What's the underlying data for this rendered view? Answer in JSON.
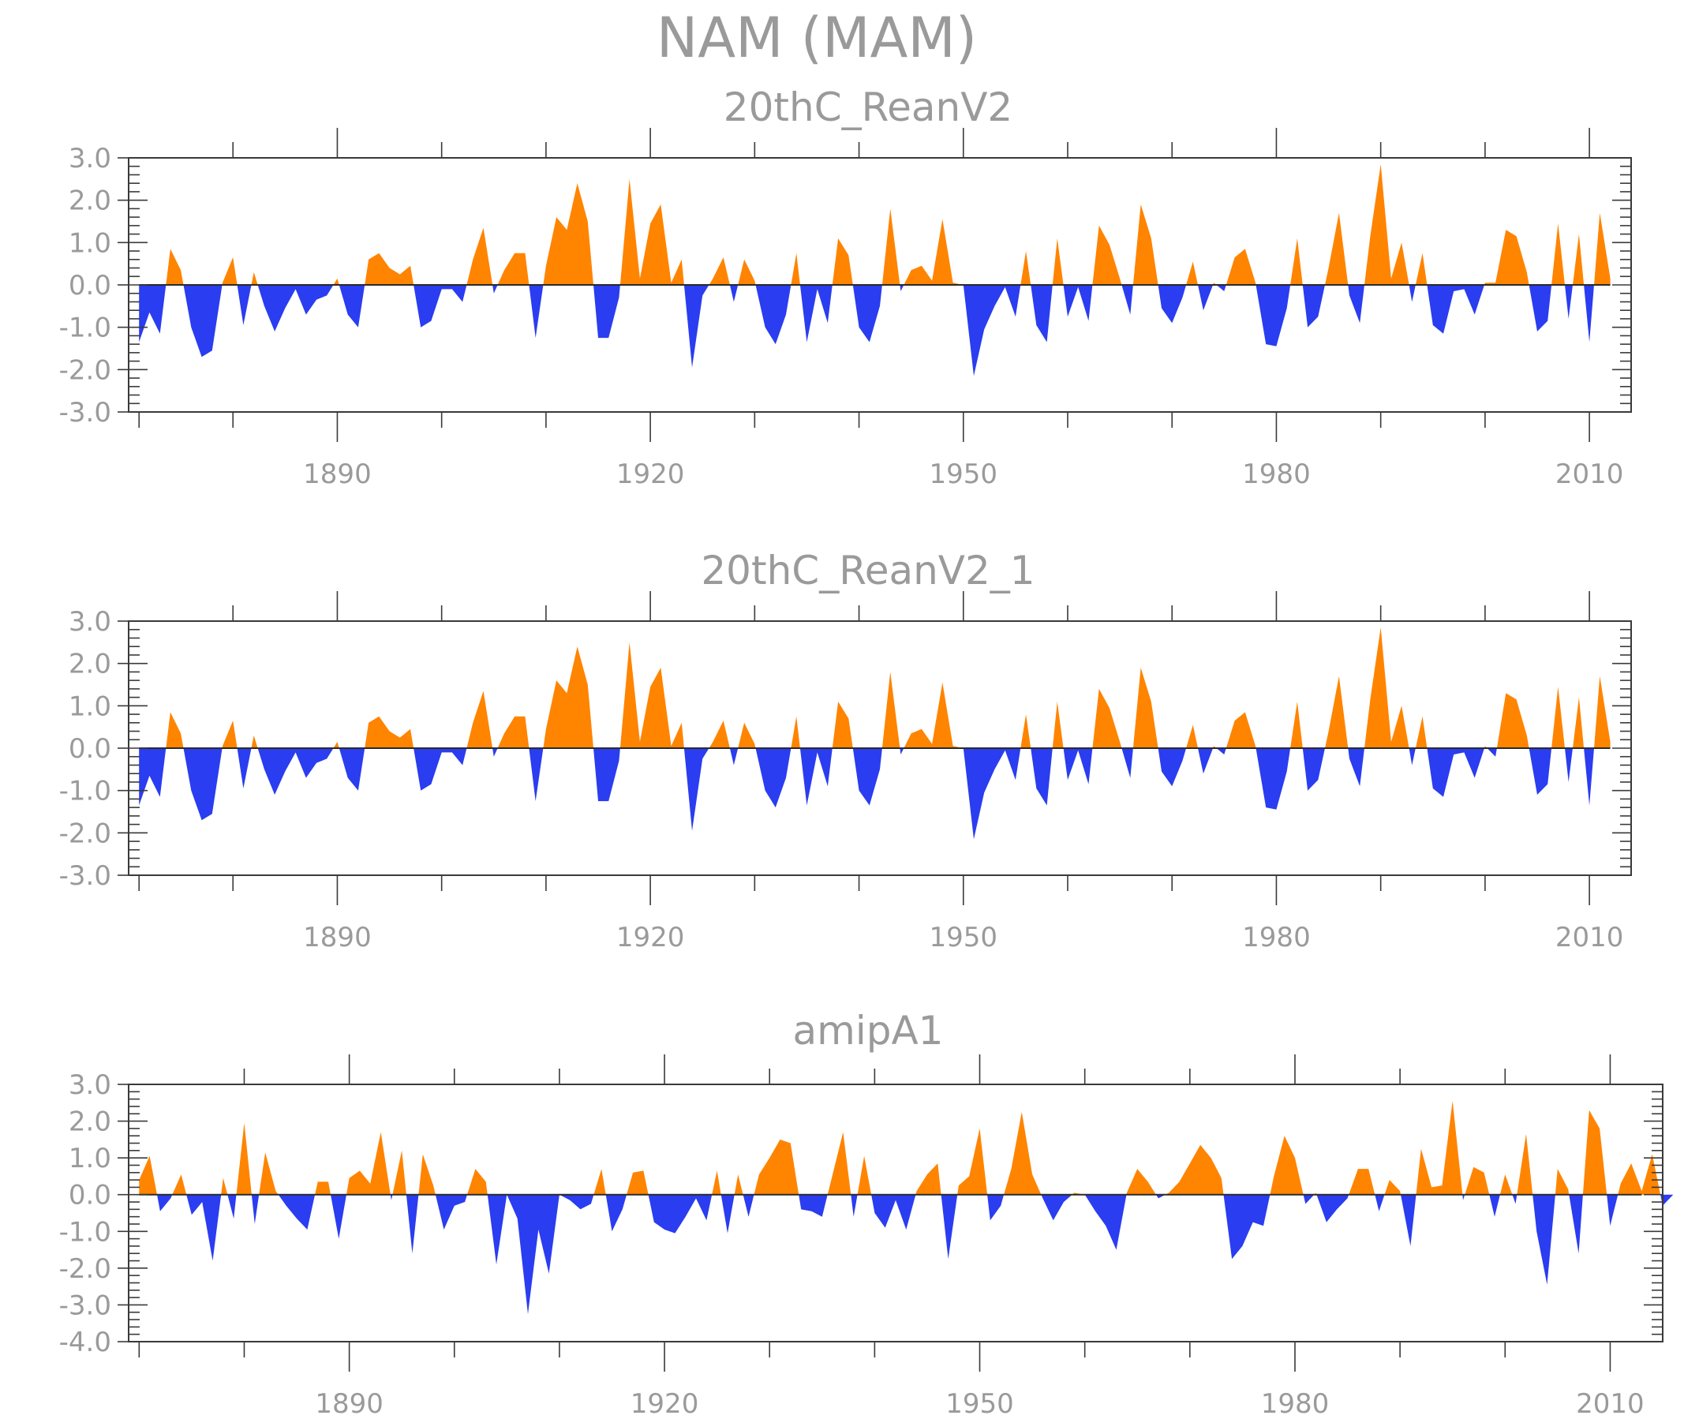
{
  "title": "NAM (MAM)",
  "colors": {
    "positive": "#ff8400",
    "negative": "#2a3df0",
    "axis": "#3a3a3a",
    "text": "#9a9a9a"
  },
  "chart_data": [
    {
      "type": "area",
      "title": "20thC_ReanV2",
      "x_start": 1871,
      "x_end": 2012,
      "xlim": [
        1870,
        2014
      ],
      "ylim": [
        -3.0,
        3.0
      ],
      "yticks": [
        -3.0,
        -2.0,
        -1.0,
        0.0,
        1.0,
        2.0,
        3.0
      ],
      "ytick_labels": [
        "-3.0",
        "-2.0",
        "-1.0",
        "0.0",
        "1.0",
        "2.0",
        "3.0"
      ],
      "xtick_labels": [
        "1890",
        "1920",
        "1950",
        "1980",
        "2010"
      ],
      "values": [
        -1.35,
        -0.65,
        -1.15,
        0.85,
        0.35,
        -1.0,
        -1.7,
        -1.55,
        0.05,
        0.65,
        -0.95,
        0.3,
        -0.5,
        -1.1,
        -0.55,
        -0.1,
        -0.7,
        -0.35,
        -0.25,
        0.15,
        -0.7,
        -1.0,
        0.6,
        0.75,
        0.4,
        0.25,
        0.45,
        -1.0,
        -0.85,
        -0.1,
        -0.1,
        -0.4,
        0.6,
        1.35,
        -0.2,
        0.35,
        0.75,
        0.75,
        -1.25,
        0.45,
        1.6,
        1.3,
        2.4,
        1.5,
        -1.25,
        -1.25,
        -0.3,
        2.5,
        0.15,
        1.45,
        1.9,
        0.05,
        0.6,
        -1.95,
        -0.25,
        0.15,
        0.65,
        -0.4,
        0.6,
        0.1,
        -1.0,
        -1.4,
        -0.7,
        0.75,
        -1.35,
        -0.1,
        -0.9,
        1.1,
        0.7,
        -1.0,
        -1.35,
        -0.5,
        1.8,
        -0.15,
        0.35,
        0.45,
        0.1,
        1.55,
        0.05,
        0.0,
        -2.15,
        -1.05,
        -0.5,
        -0.05,
        -0.75,
        0.8,
        -0.95,
        -1.35,
        1.1,
        -0.75,
        -0.05,
        -0.85,
        1.4,
        0.95,
        0.15,
        -0.7,
        1.9,
        1.1,
        -0.55,
        -0.9,
        -0.3,
        0.55,
        -0.6,
        0.05,
        -0.15,
        0.65,
        0.85,
        0.05,
        -1.4,
        -1.45,
        -0.55,
        1.1,
        -1.0,
        -0.75,
        0.4,
        1.7,
        -0.25,
        -0.9,
        1.15,
        2.85,
        0.15,
        1.0,
        -0.4,
        0.75,
        -0.95,
        -1.15,
        -0.15,
        -0.1,
        -0.7,
        0.05,
        0.05,
        1.3,
        1.15,
        0.3,
        -1.1,
        -0.85,
        1.45,
        -0.8,
        1.2,
        -1.35,
        1.7,
        0.15
      ]
    },
    {
      "type": "area",
      "title": "20thC_ReanV2_1",
      "x_start": 1871,
      "x_end": 2012,
      "xlim": [
        1870,
        2014
      ],
      "ylim": [
        -3.0,
        3.0
      ],
      "yticks": [
        -3.0,
        -2.0,
        -1.0,
        0.0,
        1.0,
        2.0,
        3.0
      ],
      "ytick_labels": [
        "-3.0",
        "-2.0",
        "-1.0",
        "0.0",
        "1.0",
        "2.0",
        "3.0"
      ],
      "xtick_labels": [
        "1890",
        "1920",
        "1950",
        "1980",
        "2010"
      ],
      "values": [
        -1.35,
        -0.65,
        -1.15,
        0.85,
        0.35,
        -1.0,
        -1.7,
        -1.55,
        0.05,
        0.65,
        -0.95,
        0.3,
        -0.5,
        -1.1,
        -0.55,
        -0.1,
        -0.7,
        -0.35,
        -0.25,
        0.15,
        -0.7,
        -1.0,
        0.6,
        0.75,
        0.4,
        0.25,
        0.45,
        -1.0,
        -0.85,
        -0.1,
        -0.1,
        -0.4,
        0.6,
        1.35,
        -0.2,
        0.35,
        0.75,
        0.75,
        -1.25,
        0.45,
        1.6,
        1.3,
        2.4,
        1.5,
        -1.25,
        -1.25,
        -0.3,
        2.5,
        0.15,
        1.45,
        1.9,
        0.05,
        0.6,
        -1.95,
        -0.25,
        0.15,
        0.65,
        -0.4,
        0.6,
        0.1,
        -1.0,
        -1.4,
        -0.7,
        0.75,
        -1.35,
        -0.1,
        -0.9,
        1.1,
        0.7,
        -1.0,
        -1.35,
        -0.5,
        1.8,
        -0.15,
        0.35,
        0.45,
        0.1,
        1.55,
        0.05,
        0.0,
        -2.15,
        -1.05,
        -0.5,
        -0.05,
        -0.75,
        0.8,
        -0.95,
        -1.35,
        1.1,
        -0.75,
        -0.05,
        -0.85,
        1.4,
        0.95,
        0.15,
        -0.7,
        1.9,
        1.1,
        -0.55,
        -0.9,
        -0.3,
        0.55,
        -0.6,
        0.05,
        -0.15,
        0.65,
        0.85,
        0.05,
        -1.4,
        -1.45,
        -0.55,
        1.1,
        -1.0,
        -0.75,
        0.4,
        1.7,
        -0.25,
        -0.9,
        1.15,
        2.85,
        0.15,
        1.0,
        -0.4,
        0.75,
        -0.95,
        -1.15,
        -0.15,
        -0.1,
        -0.7,
        0.05,
        -0.2,
        1.3,
        1.15,
        0.3,
        -1.1,
        -0.85,
        1.45,
        -0.8,
        1.2,
        -1.35,
        1.7,
        0.15
      ]
    },
    {
      "type": "area",
      "title": "amipA1",
      "x_start": 1870,
      "x_end": 2013,
      "xlim": [
        1869,
        2015
      ],
      "ylim": [
        -4.0,
        3.0
      ],
      "yticks": [
        -4.0,
        -3.0,
        -2.0,
        -1.0,
        0.0,
        1.0,
        2.0,
        3.0
      ],
      "ytick_labels": [
        "-4.0",
        "-3.0",
        "-2.0",
        "-1.0",
        "0.0",
        "1.0",
        "2.0",
        "3.0"
      ],
      "xtick_labels": [
        "1890",
        "1920",
        "1950",
        "1980",
        "2010"
      ],
      "values": [
        0.4,
        1.05,
        -0.45,
        -0.1,
        0.55,
        -0.55,
        -0.2,
        -1.8,
        0.45,
        -0.65,
        1.95,
        -0.8,
        1.15,
        0.1,
        -0.3,
        -0.65,
        -0.95,
        0.35,
        0.35,
        -1.2,
        0.45,
        0.65,
        0.3,
        1.7,
        -0.15,
        1.2,
        -1.6,
        1.1,
        0.25,
        -0.95,
        -0.3,
        -0.2,
        0.7,
        0.35,
        -1.9,
        0.0,
        -0.65,
        -3.25,
        -0.95,
        -2.15,
        0.0,
        -0.15,
        -0.4,
        -0.25,
        0.7,
        -1.0,
        -0.4,
        0.6,
        0.65,
        -0.75,
        -0.95,
        -1.05,
        -0.6,
        -0.1,
        -0.7,
        0.65,
        -1.05,
        0.55,
        -0.6,
        0.55,
        1.0,
        1.5,
        1.4,
        -0.4,
        -0.45,
        -0.6,
        0.55,
        1.7,
        -0.6,
        1.05,
        -0.5,
        -0.9,
        -0.15,
        -0.95,
        0.1,
        0.55,
        0.85,
        -1.75,
        0.25,
        0.5,
        1.8,
        -0.7,
        -0.3,
        0.7,
        2.25,
        0.55,
        -0.1,
        -0.7,
        -0.2,
        0.05,
        0.0,
        -0.45,
        -0.85,
        -1.5,
        0.05,
        0.7,
        0.35,
        -0.1,
        0.05,
        0.35,
        0.85,
        1.35,
        1.0,
        0.45,
        -1.75,
        -1.4,
        -0.75,
        -0.85,
        0.5,
        1.6,
        1.0,
        -0.25,
        0.05,
        -0.75,
        -0.4,
        -0.1,
        0.7,
        0.7,
        -0.45,
        0.4,
        0.1,
        -1.4,
        1.25,
        0.2,
        0.25,
        2.55,
        -0.15,
        0.75,
        0.6,
        -0.6,
        0.55,
        -0.25,
        1.65,
        -1.0,
        -2.45,
        0.7,
        0.15,
        -1.6,
        2.3,
        1.8,
        -0.85,
        0.3,
        0.85,
        0.1,
        1.1,
        -0.3,
        0.0
      ]
    }
  ]
}
